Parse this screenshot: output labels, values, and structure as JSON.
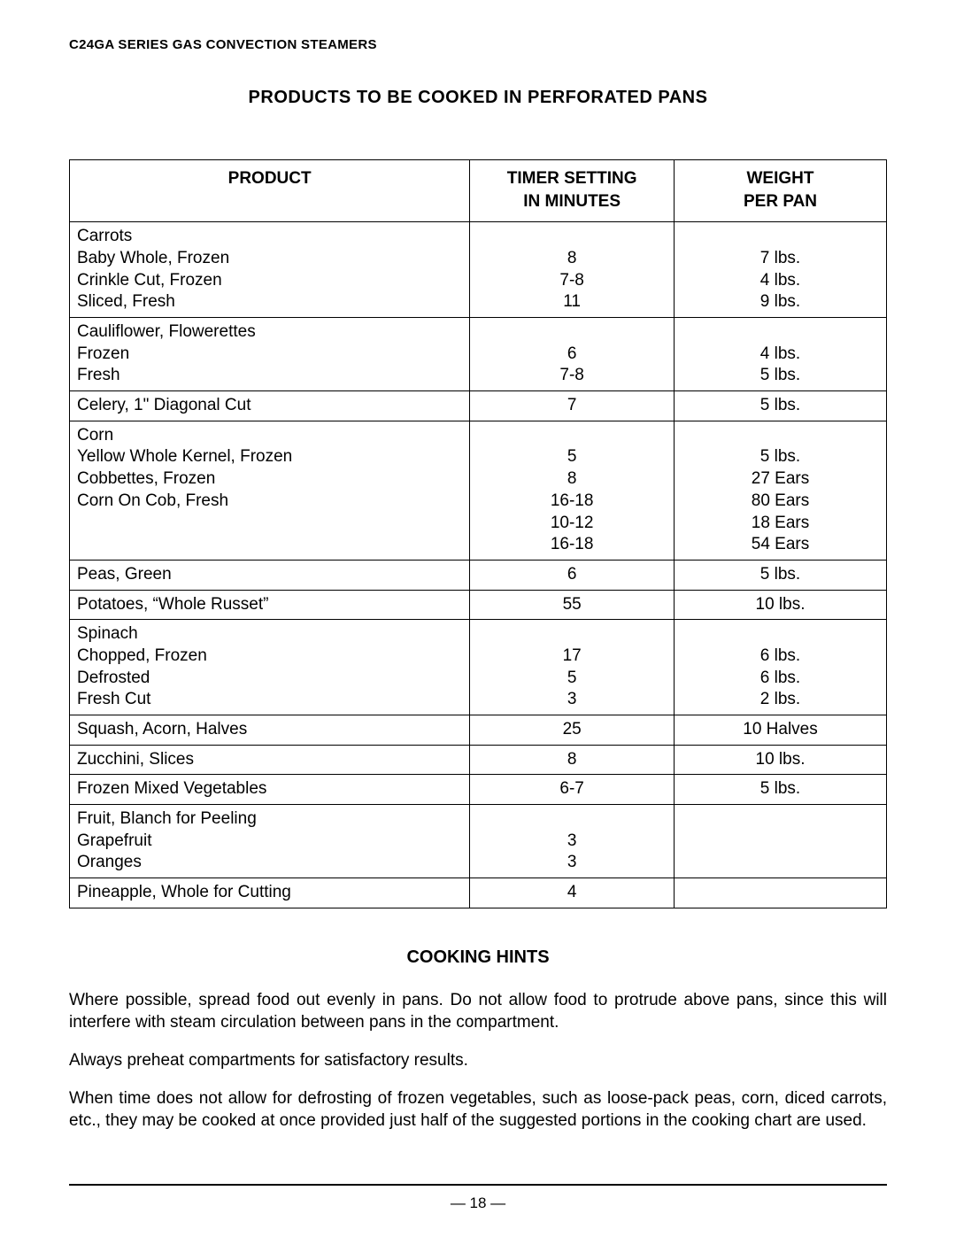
{
  "header": "C24GA SERIES GAS CONVECTION STEAMERS",
  "title": "PRODUCTS TO BE COOKED IN PERFORATED PANS",
  "columns": {
    "product": "PRODUCT",
    "timer_l1": "TIMER SETTING",
    "timer_l2": "IN MINUTES",
    "weight_l1": "WEIGHT",
    "weight_l2": "PER PAN"
  },
  "rows": [
    {
      "product": [
        "Carrots",
        "Baby Whole, Frozen",
        "Crinkle Cut, Frozen",
        "Sliced, Fresh"
      ],
      "timer": [
        "",
        "8",
        "7-8",
        "11"
      ],
      "weight": [
        "",
        "7 lbs.",
        "4 lbs.",
        "9 lbs."
      ]
    },
    {
      "product": [
        "Cauliflower, Flowerettes",
        "Frozen",
        "Fresh"
      ],
      "timer": [
        "",
        "6",
        "7-8"
      ],
      "weight": [
        "",
        "4 lbs.",
        "5 lbs."
      ]
    },
    {
      "product": [
        "Celery, 1\" Diagonal Cut"
      ],
      "timer": [
        "7"
      ],
      "weight": [
        "5 lbs."
      ]
    },
    {
      "product": [
        "Corn",
        "Yellow Whole Kernel, Frozen",
        "Cobbettes, Frozen",
        "Corn On Cob, Fresh",
        "",
        ""
      ],
      "timer": [
        "",
        "5",
        "8",
        "16-18",
        "10-12",
        "16-18"
      ],
      "weight": [
        "",
        "5 lbs.",
        "27 Ears",
        "80 Ears",
        "18 Ears",
        "54 Ears"
      ]
    },
    {
      "product": [
        "Peas, Green"
      ],
      "timer": [
        "6"
      ],
      "weight": [
        "5 lbs."
      ]
    },
    {
      "product": [
        "Potatoes, “Whole Russet”"
      ],
      "timer": [
        "55"
      ],
      "weight": [
        "10 lbs."
      ]
    },
    {
      "product": [
        "Spinach",
        "Chopped, Frozen",
        "Defrosted",
        "Fresh Cut"
      ],
      "timer": [
        "",
        "17",
        "5",
        "3"
      ],
      "weight": [
        "",
        "6 lbs.",
        "6 lbs.",
        "2 lbs."
      ]
    },
    {
      "product": [
        "Squash, Acorn, Halves"
      ],
      "timer": [
        "25"
      ],
      "weight": [
        "10 Halves"
      ]
    },
    {
      "product": [
        "Zucchini, Slices"
      ],
      "timer": [
        "8"
      ],
      "weight": [
        "10 lbs."
      ]
    },
    {
      "product": [
        "Frozen Mixed Vegetables"
      ],
      "timer": [
        "6-7"
      ],
      "weight": [
        "5 lbs."
      ]
    },
    {
      "product": [
        "Fruit, Blanch for Peeling",
        "Grapefruit",
        "Oranges"
      ],
      "timer": [
        "",
        "3",
        "3"
      ],
      "weight": [
        "",
        "",
        ""
      ]
    },
    {
      "product": [
        "Pineapple, Whole for Cutting"
      ],
      "timer": [
        "4"
      ],
      "weight": [
        ""
      ]
    }
  ],
  "hints_title": "COOKING HINTS",
  "hints": [
    "Where possible, spread food out evenly in pans. Do not allow food to protrude above pans, since this will interfere with steam circulation between pans in the compartment.",
    "Always preheat compartments for satisfactory results.",
    "When time does not allow for defrosting of frozen vegetables, such as loose-pack peas, corn, diced carrots, etc., they may be cooked at once provided just half of the suggested portions in the cooking chart are used."
  ],
  "page_number": "— 18 —"
}
